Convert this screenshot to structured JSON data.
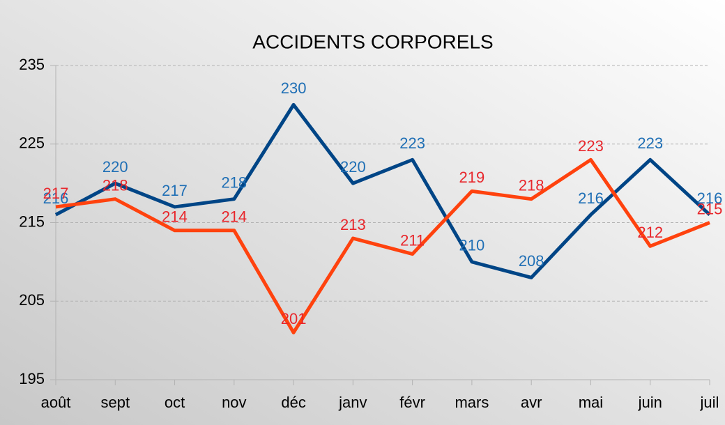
{
  "chart_data": {
    "type": "line",
    "title": "ACCIDENTS CORPORELS",
    "categories": [
      "août",
      "sept",
      "oct",
      "nov",
      "déc",
      "janv",
      "févr",
      "mars",
      "avr",
      "mai",
      "juin",
      "juil"
    ],
    "series": [
      {
        "color": "#004586",
        "label_color": "#1f6fb5",
        "values": [
          216,
          220,
          217,
          218,
          230,
          220,
          223,
          210,
          208,
          216,
          223,
          216
        ]
      },
      {
        "color": "#ff420e",
        "label_color": "#e8262b",
        "values": [
          217,
          218,
          214,
          214,
          201,
          213,
          211,
          219,
          218,
          223,
          212,
          215
        ]
      }
    ],
    "ylim": [
      195,
      235
    ],
    "yticks": [
      195,
      205,
      215,
      225,
      235
    ],
    "grid": true,
    "data_labels": true
  }
}
